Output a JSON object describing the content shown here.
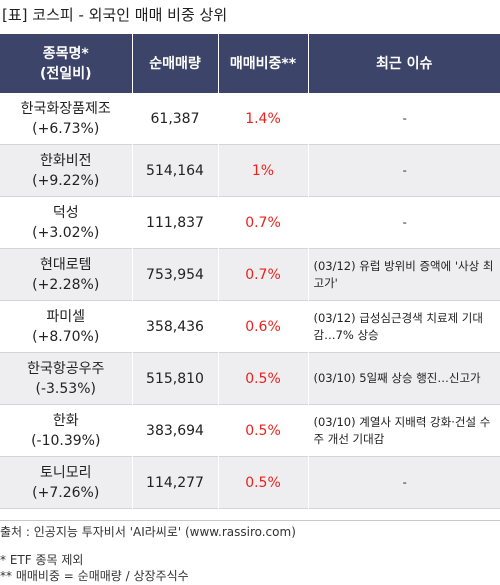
{
  "title": "[표] 코스피 - 외국인 매매 비중 상위",
  "header": {
    "col1_line1": "종목명*",
    "col1_line2": "(전일비)",
    "col2": "순매매량",
    "col3": "매매비중**",
    "col4": "최근 이슈"
  },
  "rows": [
    {
      "name": "한국화장품제조",
      "change": "(+6.73%)",
      "volume": "61,387",
      "ratio": "1.4%",
      "issue": "-"
    },
    {
      "name": "한화비전",
      "change": "(+9.22%)",
      "volume": "514,164",
      "ratio": "1%",
      "issue": "-"
    },
    {
      "name": "덕성",
      "change": "(+3.02%)",
      "volume": "111,837",
      "ratio": "0.7%",
      "issue": "-"
    },
    {
      "name": "현대로템",
      "change": "(+2.28%)",
      "volume": "753,954",
      "ratio": "0.7%",
      "issue": "(03/12) 유럽 방위비 증액에 '사상 최고가'"
    },
    {
      "name": "파미셀",
      "change": "(+8.70%)",
      "volume": "358,436",
      "ratio": "0.6%",
      "issue": "(03/12) 급성심근경색 치료제 기대감…7% 상승"
    },
    {
      "name": "한국항공우주",
      "change": "(-3.53%)",
      "volume": "515,810",
      "ratio": "0.5%",
      "issue": "(03/10) 5일째 상승 행진…신고가"
    },
    {
      "name": "한화",
      "change": "(-10.39%)",
      "volume": "383,694",
      "ratio": "0.5%",
      "issue": "(03/10) 계열사 지배력 강화·건설 수주 개선 기대감"
    },
    {
      "name": "토니모리",
      "change": "(+7.26%)",
      "volume": "114,277",
      "ratio": "0.5%",
      "issue": "-"
    }
  ],
  "footer": {
    "source": "출처 : 인공지능 투자비서 'AI라씨로' (www.rassiro.com)",
    "note1": "* ETF 종목 제외",
    "note2": "** 매매비중 = 순매매량 / 상장주식수"
  },
  "colors": {
    "header_bg": "#3d4469",
    "ratio_text": "#e8231e",
    "stripe": "#eeeef0"
  }
}
